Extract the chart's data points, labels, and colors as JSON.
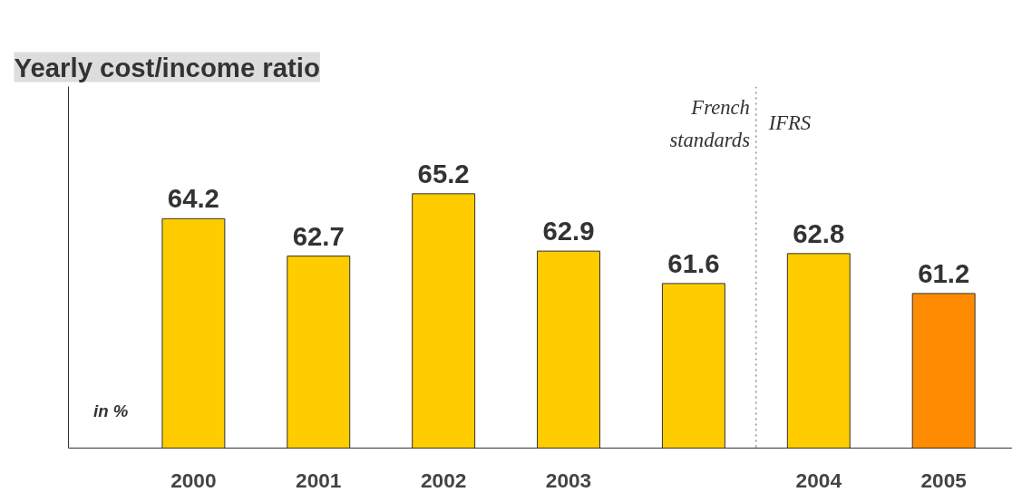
{
  "chart_data": {
    "type": "bar",
    "title": "Yearly cost/income ratio",
    "categories": [
      "2000",
      "2001",
      "2002",
      "2003",
      null,
      "2004",
      "2005"
    ],
    "values": [
      64.2,
      62.7,
      65.2,
      62.9,
      61.6,
      62.8,
      61.2
    ],
    "colors": [
      "#ffcc00",
      "#ffcc00",
      "#ffcc00",
      "#ffcc00",
      "#ffcc00",
      "#ffcc00",
      "#ff8c00"
    ],
    "ylim": [
      55,
      69.5
    ],
    "data_labels": true,
    "annotations": [
      "French standards",
      "IFRS",
      "in %"
    ],
    "grid": false,
    "tick_labels": "x"
  }
}
